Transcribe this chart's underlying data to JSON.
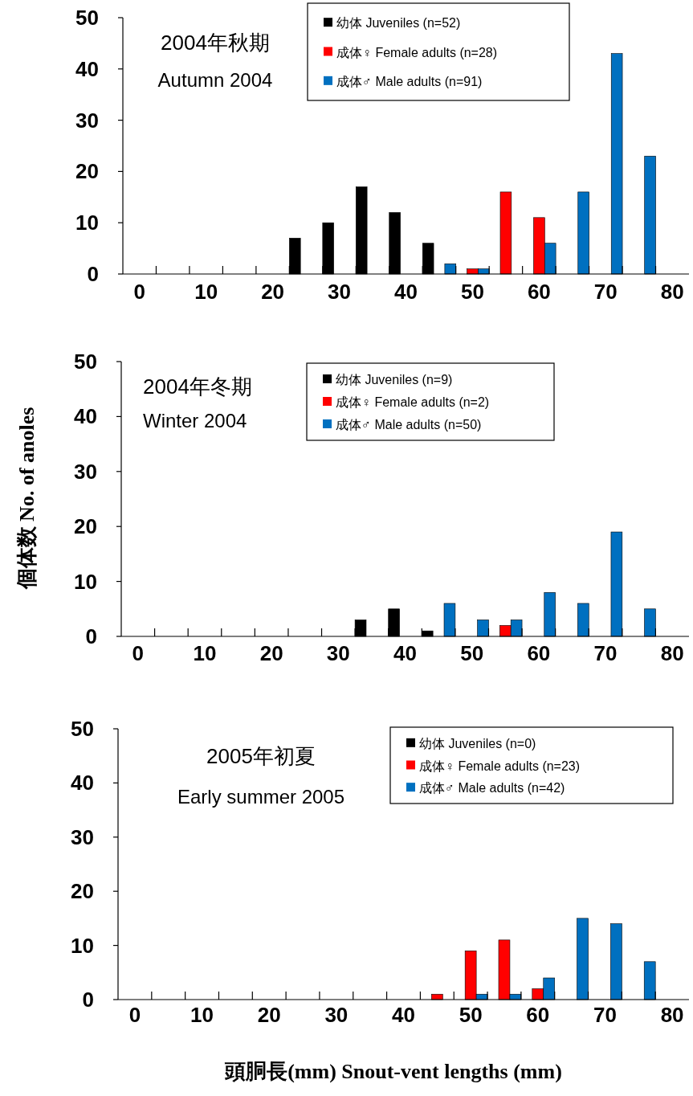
{
  "chart_data": [
    {
      "type": "bar",
      "title": "2004年秋期",
      "subtitle": "Autumn 2004",
      "categories": [
        "0",
        null,
        "10",
        null,
        "20",
        null,
        "30",
        null,
        "40",
        null,
        "50",
        null,
        "60",
        null,
        "70",
        null,
        "80"
      ],
      "ylim": [
        0,
        50
      ],
      "yticks": [
        0,
        10,
        20,
        30,
        40,
        50
      ],
      "legend": "top right",
      "series": [
        {
          "name": "幼体 Juveniles (n=52)",
          "color": "#000000",
          "values": [
            0,
            0,
            0,
            0,
            0,
            7,
            10,
            17,
            12,
            6,
            0,
            0,
            0,
            0,
            0,
            0,
            0
          ]
        },
        {
          "name": "成体♀ Female adults (n=28)",
          "color": "#ff0000",
          "values": [
            0,
            0,
            0,
            0,
            0,
            0,
            0,
            0,
            0,
            0,
            1,
            16,
            11,
            0,
            0,
            0,
            0
          ]
        },
        {
          "name": "成体♂ Male adults (n=91)",
          "color": "#0070c0",
          "values": [
            0,
            0,
            0,
            0,
            0,
            0,
            0,
            0,
            0,
            2,
            1,
            0,
            6,
            16,
            43,
            23,
            0
          ]
        }
      ]
    },
    {
      "type": "bar",
      "title": "2004年冬期",
      "subtitle": "Winter 2004",
      "ylabel": "個体数  No. of anoles",
      "categories": [
        "0",
        null,
        "10",
        null,
        "20",
        null,
        "30",
        null,
        "40",
        null,
        "50",
        null,
        "60",
        null,
        "70",
        null,
        "80"
      ],
      "ylim": [
        0,
        50
      ],
      "yticks": [
        0,
        10,
        20,
        30,
        40,
        50
      ],
      "legend": "top right",
      "series": [
        {
          "name": "幼体 Juveniles (n=9)",
          "color": "#000000",
          "values": [
            0,
            0,
            0,
            0,
            0,
            0,
            0,
            3,
            5,
            1,
            0,
            0,
            0,
            0,
            0,
            0,
            0
          ]
        },
        {
          "name": "成体♀ Female adults (n=2)",
          "color": "#ff0000",
          "values": [
            0,
            0,
            0,
            0,
            0,
            0,
            0,
            0,
            0,
            0,
            0,
            2,
            0,
            0,
            0,
            0,
            0
          ]
        },
        {
          "name": "成体♂ Male adults (n=50)",
          "color": "#0070c0",
          "values": [
            0,
            0,
            0,
            0,
            0,
            0,
            0,
            0,
            0,
            6,
            3,
            3,
            8,
            6,
            19,
            5,
            0
          ]
        }
      ]
    },
    {
      "type": "bar",
      "title": "2005年初夏",
      "subtitle": "Early summer 2005",
      "xlabel": "頭胴長(mm)  Snout-vent lengths (mm)",
      "categories": [
        "0",
        null,
        "10",
        null,
        "20",
        null,
        "30",
        null,
        "40",
        null,
        "50",
        null,
        "60",
        null,
        "70",
        null,
        "80"
      ],
      "ylim": [
        0,
        50
      ],
      "yticks": [
        0,
        10,
        20,
        30,
        40,
        50
      ],
      "legend": "top right",
      "series": [
        {
          "name": "幼体 Juveniles (n=0)",
          "color": "#000000",
          "values": [
            0,
            0,
            0,
            0,
            0,
            0,
            0,
            0,
            0,
            0,
            0,
            0,
            0,
            0,
            0,
            0,
            0
          ]
        },
        {
          "name": "成体♀ Female adults (n=23)",
          "color": "#ff0000",
          "values": [
            0,
            0,
            0,
            0,
            0,
            0,
            0,
            0,
            0,
            1,
            9,
            11,
            2,
            0,
            0,
            0,
            0
          ]
        },
        {
          "name": "成体♂ Male adults (n=42)",
          "color": "#0070c0",
          "values": [
            0,
            0,
            0,
            0,
            0,
            0,
            0,
            0,
            0,
            0,
            1,
            1,
            4,
            15,
            14,
            7,
            0
          ]
        }
      ]
    }
  ]
}
